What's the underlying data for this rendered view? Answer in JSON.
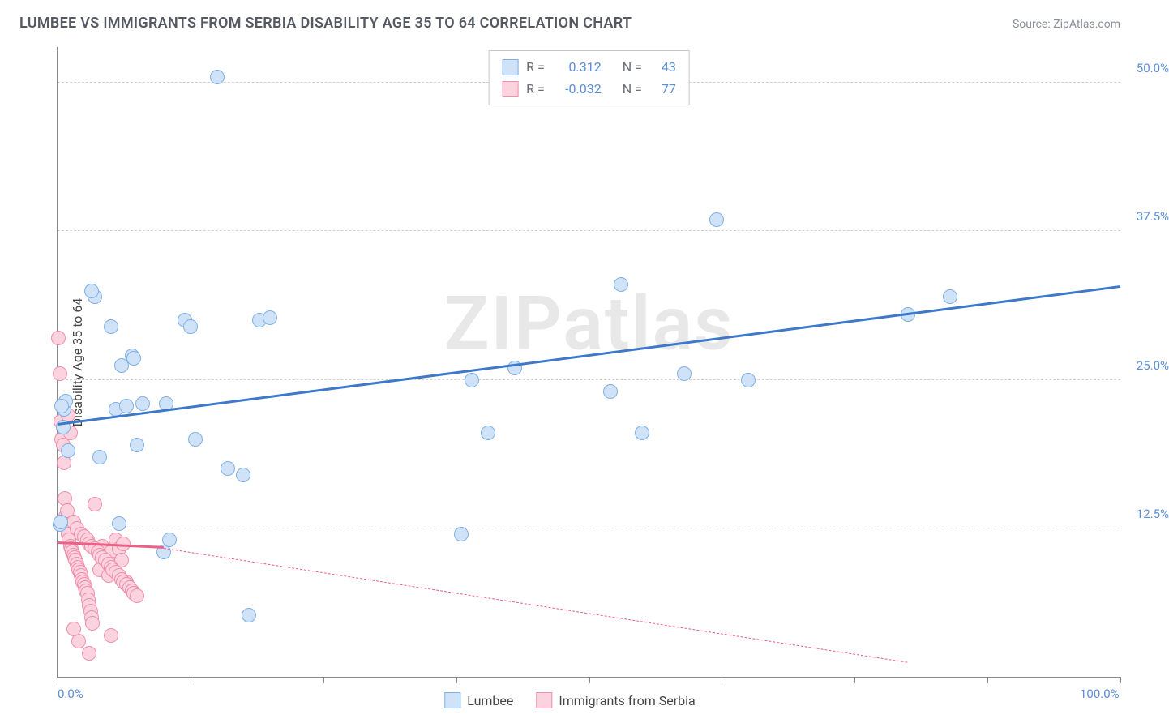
{
  "title": "LUMBEE VS IMMIGRANTS FROM SERBIA DISABILITY AGE 35 TO 64 CORRELATION CHART",
  "source": "Source: ZipAtlas.com",
  "watermark": "ZIPatlas",
  "ylabel": "Disability Age 35 to 64",
  "chart": {
    "type": "scatter",
    "xlim": [
      0,
      100
    ],
    "ylim": [
      0,
      53
    ],
    "xticks": [
      0,
      12.5,
      25,
      37.5,
      50,
      62.5,
      75,
      87.5,
      100
    ],
    "xtick_labels_shown": {
      "0": "0.0%",
      "100": "100.0%"
    },
    "yticks": [
      12.5,
      25,
      37.5,
      50
    ],
    "ytick_labels": [
      "12.5%",
      "25.0%",
      "37.5%",
      "50.0%"
    ],
    "grid_color": "#d0d0d0",
    "background_color": "#ffffff",
    "axis_color": "#888888",
    "tick_label_color": "#5b8fd6",
    "marker_radius": 9,
    "series": [
      {
        "name": "Lumbee",
        "fill": "#cfe2f8",
        "stroke": "#7fb0e5",
        "trend_color": "#3d78c9",
        "r_value": "0.312",
        "n_value": "43",
        "trend": {
          "x0": 0,
          "y0": 21.2,
          "x1": 100,
          "y1": 32.8
        },
        "points": [
          [
            0.2,
            12.8
          ],
          [
            0.3,
            13.0
          ],
          [
            0.5,
            21.0
          ],
          [
            0.6,
            22.5
          ],
          [
            0.8,
            23.2
          ],
          [
            1.0,
            19.0
          ],
          [
            3.5,
            32.0
          ],
          [
            4.0,
            18.5
          ],
          [
            5.0,
            29.5
          ],
          [
            5.5,
            22.5
          ],
          [
            5.8,
            12.9
          ],
          [
            6.0,
            26.2
          ],
          [
            6.5,
            22.8
          ],
          [
            7.0,
            27.0
          ],
          [
            7.2,
            26.8
          ],
          [
            7.5,
            19.5
          ],
          [
            8.0,
            23.0
          ],
          [
            10.0,
            10.5
          ],
          [
            10.2,
            23.0
          ],
          [
            10.5,
            11.5
          ],
          [
            12.0,
            30.0
          ],
          [
            12.5,
            29.5
          ],
          [
            13.0,
            20.0
          ],
          [
            15.0,
            50.5
          ],
          [
            16.0,
            17.5
          ],
          [
            17.5,
            17.0
          ],
          [
            18.0,
            5.2
          ],
          [
            19.0,
            30.0
          ],
          [
            20.0,
            30.2
          ],
          [
            38.0,
            12.0
          ],
          [
            39.0,
            25.0
          ],
          [
            40.5,
            20.5
          ],
          [
            43.0,
            26.0
          ],
          [
            52.0,
            24.0
          ],
          [
            53.0,
            33.0
          ],
          [
            55.0,
            20.5
          ],
          [
            59.0,
            25.5
          ],
          [
            62.0,
            38.5
          ],
          [
            65.0,
            25.0
          ],
          [
            80.0,
            30.5
          ],
          [
            84.0,
            32.0
          ],
          [
            3.2,
            32.5
          ],
          [
            0.4,
            22.8
          ]
        ]
      },
      {
        "name": "Immigrants from Serbia",
        "fill": "#fbd3de",
        "stroke": "#f08fab",
        "trend_color": "#ec5f86",
        "r_value": "-0.032",
        "n_value": "77",
        "trend_solid": {
          "x0": 0,
          "y0": 11.2,
          "x1": 10,
          "y1": 10.8
        },
        "trend_dash": {
          "x0": 10,
          "y0": 10.8,
          "x1": 80,
          "y1": 1.2
        },
        "points": [
          [
            0.1,
            28.5
          ],
          [
            0.2,
            25.5
          ],
          [
            0.3,
            21.5
          ],
          [
            0.4,
            20.0
          ],
          [
            0.5,
            19.5
          ],
          [
            0.6,
            18.0
          ],
          [
            0.7,
            15.0
          ],
          [
            0.8,
            13.5
          ],
          [
            0.9,
            12.5
          ],
          [
            1.0,
            12.0
          ],
          [
            1.1,
            11.5
          ],
          [
            1.2,
            11.0
          ],
          [
            1.3,
            10.8
          ],
          [
            1.4,
            10.5
          ],
          [
            1.5,
            10.2
          ],
          [
            1.6,
            10.0
          ],
          [
            1.7,
            9.8
          ],
          [
            1.8,
            9.5
          ],
          [
            1.9,
            9.2
          ],
          [
            2.0,
            9.0
          ],
          [
            2.1,
            8.8
          ],
          [
            2.2,
            8.5
          ],
          [
            2.3,
            8.2
          ],
          [
            2.4,
            8.0
          ],
          [
            2.5,
            7.8
          ],
          [
            2.6,
            7.5
          ],
          [
            2.7,
            7.2
          ],
          [
            2.8,
            7.0
          ],
          [
            2.9,
            6.5
          ],
          [
            3.0,
            6.0
          ],
          [
            3.1,
            5.5
          ],
          [
            3.2,
            5.0
          ],
          [
            3.3,
            4.5
          ],
          [
            3.5,
            14.5
          ],
          [
            3.8,
            10.5
          ],
          [
            4.0,
            9.0
          ],
          [
            4.2,
            11.0
          ],
          [
            4.5,
            10.0
          ],
          [
            4.8,
            8.5
          ],
          [
            5.0,
            10.5
          ],
          [
            5.2,
            9.5
          ],
          [
            5.5,
            11.5
          ],
          [
            5.8,
            10.8
          ],
          [
            6.0,
            9.8
          ],
          [
            6.2,
            11.2
          ],
          [
            6.5,
            8.0
          ],
          [
            2.0,
            3.0
          ],
          [
            3.0,
            2.0
          ],
          [
            5.0,
            3.5
          ],
          [
            1.0,
            22.0
          ],
          [
            1.2,
            20.5
          ],
          [
            0.9,
            14.0
          ],
          [
            1.5,
            13.0
          ],
          [
            1.8,
            12.5
          ],
          [
            2.2,
            12.0
          ],
          [
            2.5,
            11.8
          ],
          [
            2.8,
            11.5
          ],
          [
            3.0,
            11.2
          ],
          [
            3.2,
            11.0
          ],
          [
            3.5,
            10.8
          ],
          [
            3.8,
            10.5
          ],
          [
            4.0,
            10.2
          ],
          [
            4.2,
            10.0
          ],
          [
            4.5,
            9.8
          ],
          [
            4.8,
            9.5
          ],
          [
            5.0,
            9.2
          ],
          [
            5.2,
            9.0
          ],
          [
            5.5,
            8.8
          ],
          [
            5.8,
            8.5
          ],
          [
            6.0,
            8.2
          ],
          [
            6.2,
            8.0
          ],
          [
            6.5,
            7.8
          ],
          [
            6.8,
            7.5
          ],
          [
            7.0,
            7.2
          ],
          [
            7.2,
            7.0
          ],
          [
            7.5,
            6.8
          ],
          [
            1.5,
            4.0
          ]
        ]
      }
    ]
  },
  "legend_top": [
    {
      "swatch_fill": "#cfe2f8",
      "swatch_stroke": "#7fb0e5",
      "r_label": "R =",
      "r_val": "0.312",
      "n_label": "N =",
      "n_val": "43"
    },
    {
      "swatch_fill": "#fbd3de",
      "swatch_stroke": "#f08fab",
      "r_label": "R =",
      "r_val": "-0.032",
      "n_label": "N =",
      "n_val": "77"
    }
  ],
  "legend_bottom": [
    {
      "swatch_fill": "#cfe2f8",
      "swatch_stroke": "#7fb0e5",
      "label": "Lumbee"
    },
    {
      "swatch_fill": "#fbd3de",
      "swatch_stroke": "#f08fab",
      "label": "Immigrants from Serbia"
    }
  ]
}
